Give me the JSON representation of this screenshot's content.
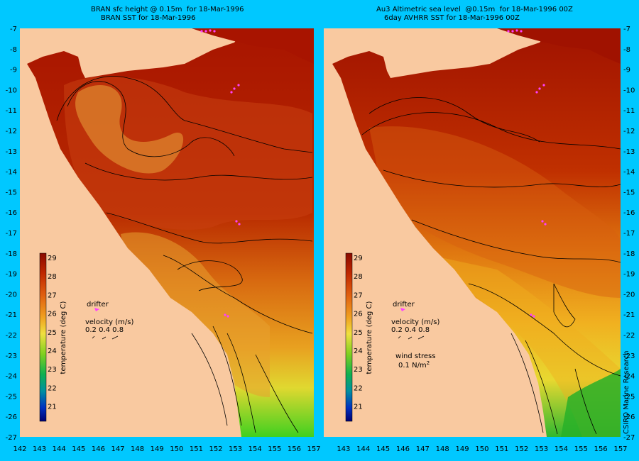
{
  "left_panel": {
    "title_line1": "BRAN sfc height @ 0.15m  for 18-Mar-1996",
    "title_line2": "BRAN SST for 18-Mar-1996"
  },
  "right_panel": {
    "title_line1": "Au3 Altimetric sea level  @0.15m  for 18-Mar-1996 00Z",
    "title_line2": "6day AVHRR SST for 18-Mar-1996 00Z"
  },
  "colorbar": {
    "label": "temperature (deg C)",
    "ticks": [
      "29",
      "28",
      "27",
      "26",
      "25",
      "24",
      "23",
      "22",
      "21"
    ]
  },
  "legend": {
    "drifter": "drifter",
    "velocity_label": "velocity (m/s)",
    "velocity_values": "0.2 0.4 0.8",
    "wind_stress_label": "wind stress",
    "wind_stress_value": "0.1 N/m",
    "wind_stress_exp": "2"
  },
  "credit": "CSIRO Marine Research",
  "axes": {
    "y_ticks": [
      "-7",
      "-8",
      "-9",
      "-10",
      "-11",
      "-12",
      "-13",
      "-14",
      "-15",
      "-16",
      "-17",
      "-18",
      "-19",
      "-20",
      "-21",
      "-22",
      "-23",
      "-24",
      "-25",
      "-26",
      "-27"
    ],
    "x_ticks": [
      "142",
      "143",
      "144",
      "145",
      "146",
      "147",
      "148",
      "149",
      "150",
      "151",
      "152",
      "153",
      "154",
      "155",
      "156",
      "157"
    ]
  },
  "colors": {
    "background": "#00c8ff",
    "land": "#f9c9a0",
    "sst_warm": "#b01800",
    "sst_mid": "#d86010",
    "sst_cool": "#f0b020",
    "sst_green": "#30c020",
    "drifter": "#ff40ff"
  }
}
